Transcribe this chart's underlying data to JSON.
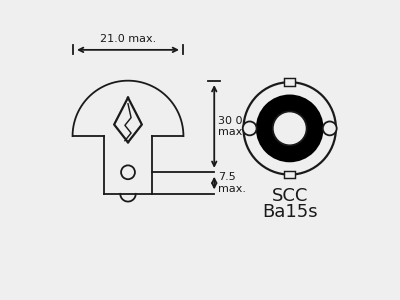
{
  "bg_color": "#efefef",
  "line_color": "#1a1a1a",
  "dim_width_label": "21.0 max.",
  "dim_height_label": "30 0\nmax.",
  "dim_base_label": "7.5\nmax.",
  "scc_label": "SCC",
  "base_label": "Ba15s"
}
